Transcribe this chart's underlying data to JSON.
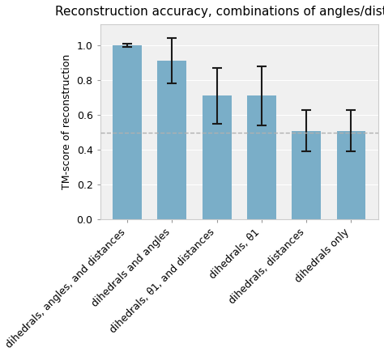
{
  "title": "Reconstruction accuracy, combinations of angles/distances",
  "ylabel": "TM-score of reconstruction",
  "categories": [
    "dihedrals, angles, and distances",
    "dihedrals and angles",
    "dihedrals, θ1, and distances",
    "dihedrals, θ1",
    "dihedrals, distances",
    "dihedrals only"
  ],
  "values": [
    1.0,
    0.91,
    0.71,
    0.71,
    0.51,
    0.51
  ],
  "errors_low": [
    0.01,
    0.13,
    0.16,
    0.17,
    0.12,
    0.12
  ],
  "errors_high": [
    0.01,
    0.13,
    0.16,
    0.17,
    0.12,
    0.12
  ],
  "bar_color": "#7aaec8",
  "error_color": "#1a1a1a",
  "hline_y": 0.5,
  "hline_color": "#b0b0b0",
  "hline_style": "--",
  "ylim": [
    0,
    1.12
  ],
  "yticks": [
    0.0,
    0.2,
    0.4,
    0.6,
    0.8,
    1.0
  ],
  "figsize": [
    4.74,
    4.4
  ],
  "dpi": 100,
  "title_fontsize": 11,
  "ylabel_fontsize": 9,
  "tick_fontsize": 9,
  "xtick_rotation": 45,
  "xtick_ha": "right",
  "background_color": "#f0f0f0",
  "fig_background": "#ffffff"
}
